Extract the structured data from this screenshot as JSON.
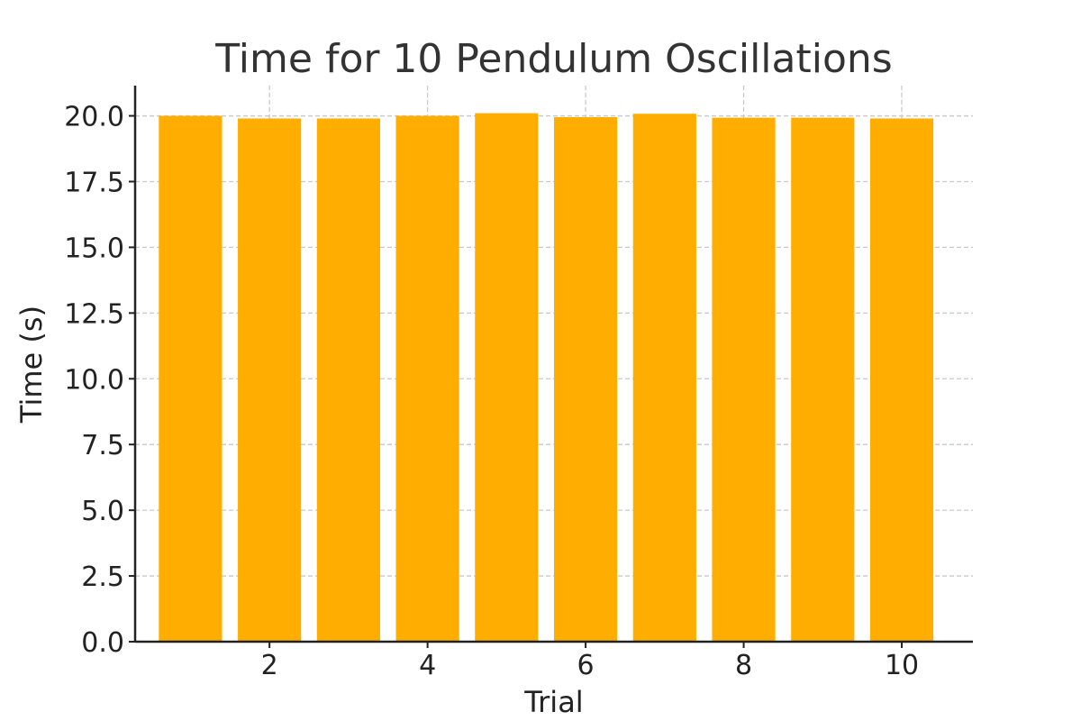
{
  "chart_data": {
    "type": "bar",
    "title": "Time for 10 Pendulum Oscillations",
    "xlabel": "Trial",
    "ylabel": "Time (s)",
    "x": [
      1,
      2,
      3,
      4,
      5,
      6,
      7,
      8,
      9,
      10
    ],
    "values": [
      20.0,
      19.9,
      19.9,
      20.0,
      20.1,
      19.95,
      20.08,
      19.93,
      19.93,
      19.9
    ],
    "xlim": [
      0.3,
      10.9
    ],
    "ylim": [
      0,
      21.15
    ],
    "xticks": [
      2,
      4,
      6,
      8,
      10
    ],
    "yticks": [
      0.0,
      2.5,
      5.0,
      7.5,
      10.0,
      12.5,
      15.0,
      17.5,
      20.0
    ],
    "ytick_labels": [
      "0.0",
      "2.5",
      "5.0",
      "7.5",
      "10.0",
      "12.5",
      "15.0",
      "17.5",
      "20.0"
    ],
    "bar_color": "#ffae00",
    "grid": true
  }
}
